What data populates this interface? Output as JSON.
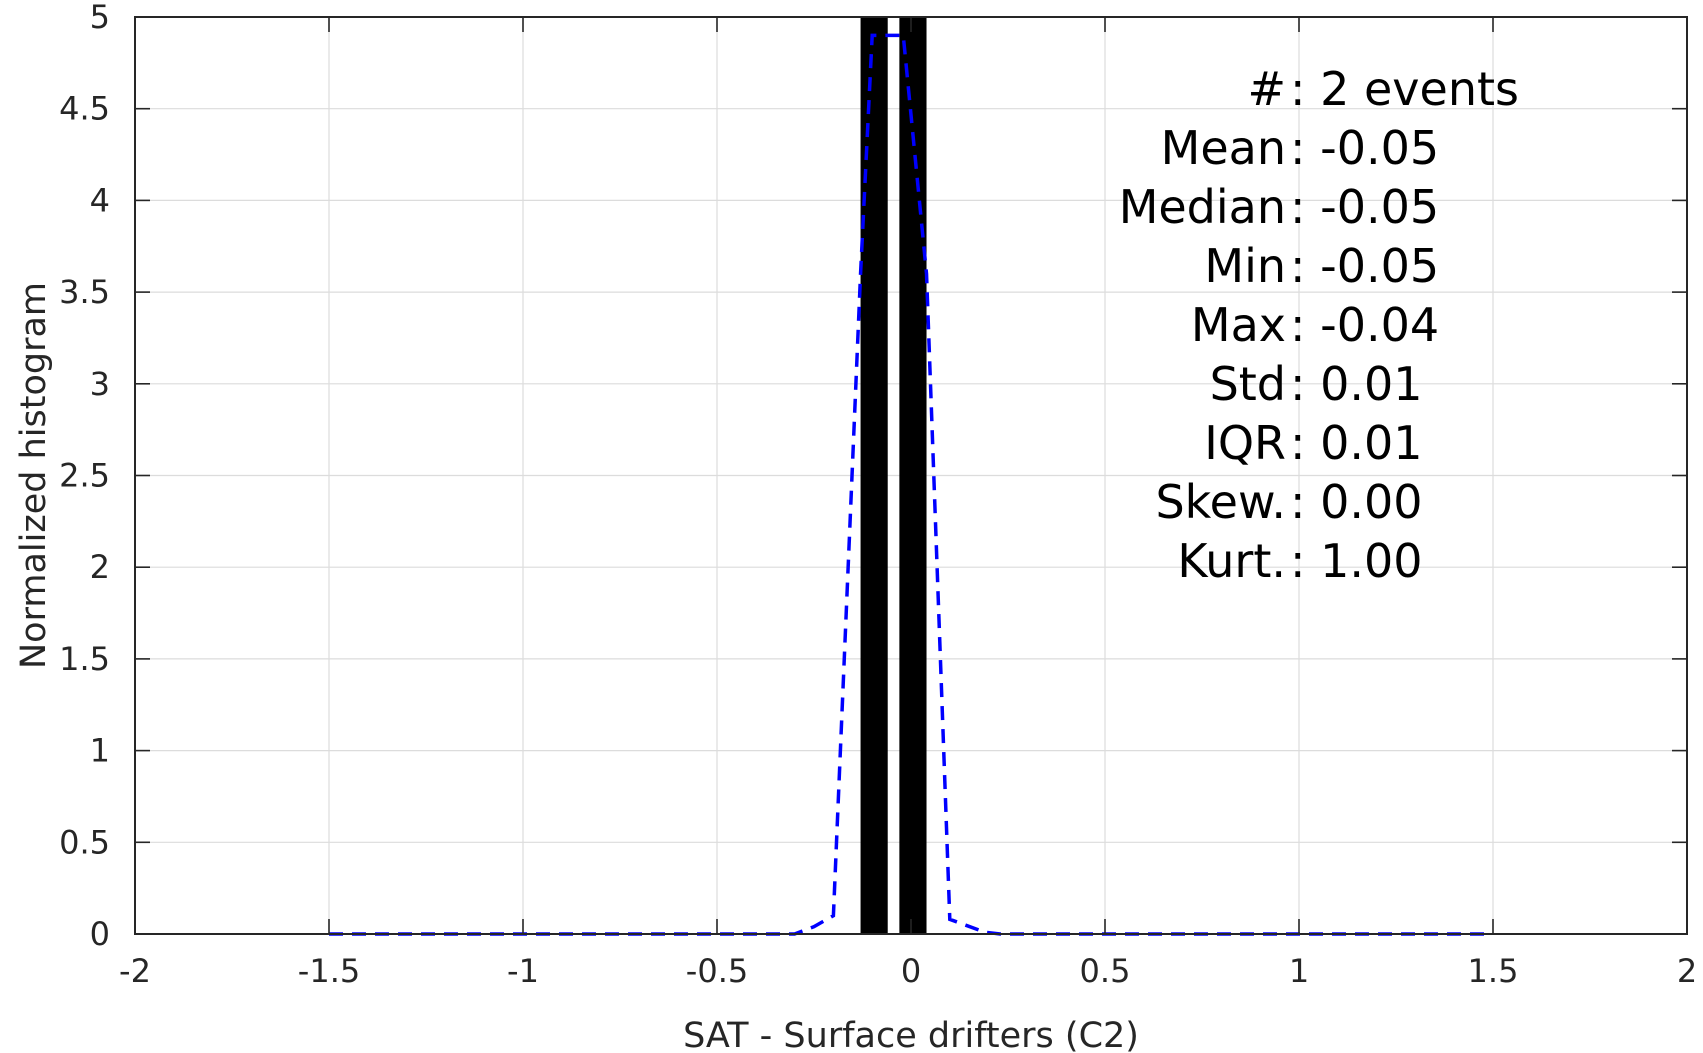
{
  "chart_data": {
    "type": "bar",
    "title": "",
    "xlabel": "SAT - Surface drifters (C2)",
    "ylabel": "Normalized histogram",
    "xlim": [
      -2,
      2
    ],
    "ylim": [
      0,
      5
    ],
    "xticks": [
      -2,
      -1.5,
      -1,
      -0.5,
      0,
      0.5,
      1,
      1.5,
      2
    ],
    "xtick_labels": [
      "-2",
      "-1.5",
      "-1",
      "-0.5",
      "0",
      "0.5",
      "1",
      "1.5",
      "2"
    ],
    "yticks": [
      0,
      0.5,
      1,
      1.5,
      2,
      2.5,
      3,
      3.5,
      4,
      4.5,
      5
    ],
    "ytick_labels": [
      "0",
      "0.5",
      "1",
      "1.5",
      "2",
      "2.5",
      "3",
      "3.5",
      "4",
      "4.5",
      "5"
    ],
    "grid": true,
    "bars": [
      {
        "x_start": -0.13,
        "x_end": -0.06,
        "value": 5
      },
      {
        "x_start": -0.03,
        "x_end": 0.04,
        "value": 5
      }
    ],
    "fit_line": {
      "style": "dashed",
      "color": "#0000ff",
      "x": [
        -1.5,
        -0.3,
        -0.25,
        -0.2,
        -0.13,
        -0.1,
        -0.02,
        0.04,
        0.1,
        0.19,
        0.23,
        1.5
      ],
      "y": [
        0,
        0,
        0.04,
        0.1,
        3.6,
        4.9,
        4.9,
        3.6,
        0.08,
        0.01,
        0,
        0
      ]
    },
    "colors": {
      "bars": "#000000",
      "fit_line": "#0000ff",
      "grid": "#dcdcdc",
      "axes": "#262626"
    },
    "annotations": [
      {
        "label": "#  ",
        "value": ": 2 events"
      },
      {
        "label": "Mean ",
        "value": ": -0.05"
      },
      {
        "label": "Median ",
        "value": ": -0.05"
      },
      {
        "label": "Min ",
        "value": ": -0.05"
      },
      {
        "label": "Max ",
        "value": ": -0.04"
      },
      {
        "label": "Std ",
        "value": ": 0.01"
      },
      {
        "label": "IQR ",
        "value": ": 0.01"
      },
      {
        "label": "Skew. ",
        "value": ": 0.00"
      },
      {
        "label": "Kurt. ",
        "value": ": 1.00"
      }
    ]
  }
}
